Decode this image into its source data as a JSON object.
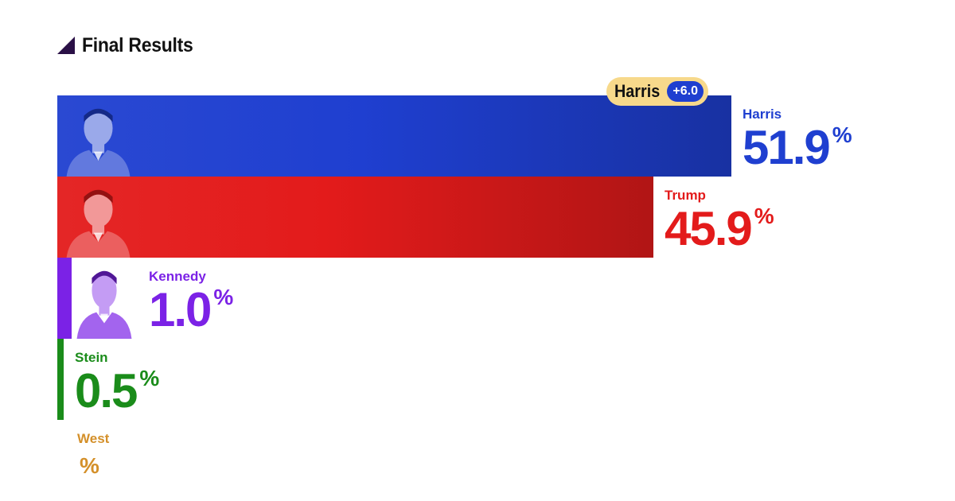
{
  "header": {
    "title": "Final Results",
    "icon": "triangle-icon"
  },
  "margin": {
    "leader": "Harris",
    "value": "+6.0",
    "pill_color": "#f7d98b",
    "badge_color": "#1f3fd0"
  },
  "colors": {
    "harris": "#1f3fd0",
    "trump": "#e31b1b",
    "kennedy": "#7b22e6",
    "stein": "#1a8c1a",
    "west": "#d4902a"
  },
  "chart_data": {
    "type": "bar",
    "orientation": "horizontal",
    "title": "Final Results",
    "categories": [
      "Harris",
      "Trump",
      "Kennedy",
      "Stein",
      "West"
    ],
    "values": [
      51.9,
      45.9,
      1.0,
      0.5,
      null
    ],
    "unit": "%",
    "margin_label": "Harris +6.0",
    "xlabel": "",
    "ylabel": "",
    "grid": false,
    "legend": "none"
  },
  "candidates": [
    {
      "name": "Harris",
      "pct": "51.9",
      "sym": "%",
      "color": "#1f3fd0",
      "photo": "harris-portrait"
    },
    {
      "name": "Trump",
      "pct": "45.9",
      "sym": "%",
      "color": "#e31b1b",
      "photo": "trump-portrait"
    },
    {
      "name": "Kennedy",
      "pct": "1.0",
      "sym": "%",
      "color": "#7b22e6",
      "photo": "kennedy-portrait"
    },
    {
      "name": "Stein",
      "pct": "0.5",
      "sym": "%",
      "color": "#1a8c1a",
      "photo": ""
    },
    {
      "name": "West",
      "pct": "",
      "sym": "%",
      "color": "#d4902a",
      "photo": ""
    }
  ]
}
